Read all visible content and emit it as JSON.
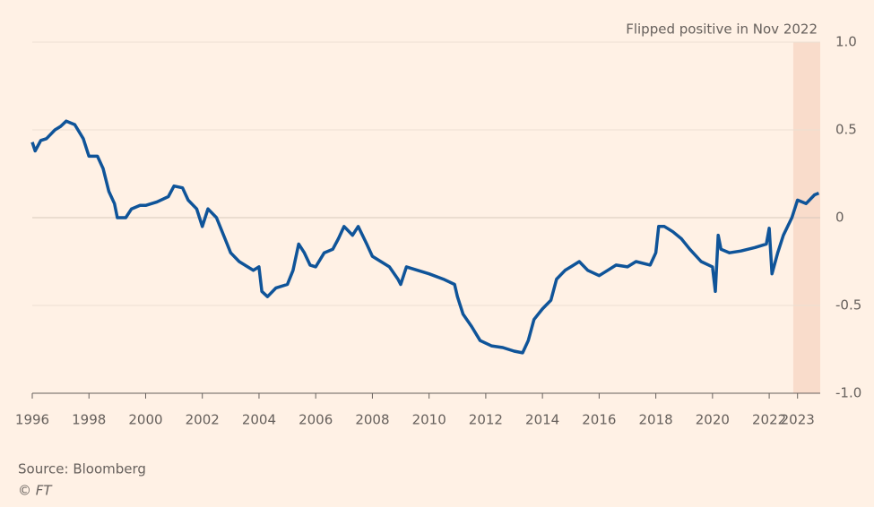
{
  "chart_data": {
    "type": "line",
    "annotation": "Flipped positive in Nov 2022",
    "source": "Source: Bloomberg",
    "credit": "© FT",
    "color": "#0f5499",
    "highlight_start": 2022.85,
    "highlight_color": "#f9dccb",
    "x": [
      1996.0,
      1996.1,
      1996.3,
      1996.5,
      1996.8,
      1997.0,
      1997.2,
      1997.5,
      1997.8,
      1998.0,
      1998.3,
      1998.5,
      1998.7,
      1998.9,
      1999.0,
      1999.3,
      1999.5,
      1999.8,
      2000.0,
      2000.4,
      2000.8,
      2001.0,
      2001.3,
      2001.5,
      2001.8,
      2002.0,
      2002.2,
      2002.5,
      2002.8,
      2003.0,
      2003.3,
      2003.6,
      2003.8,
      2004.0,
      2004.1,
      2004.3,
      2004.6,
      2005.0,
      2005.2,
      2005.4,
      2005.6,
      2005.8,
      2006.0,
      2006.3,
      2006.6,
      2006.8,
      2007.0,
      2007.3,
      2007.5,
      2007.8,
      2008.0,
      2008.3,
      2008.6,
      2008.9,
      2009.0,
      2009.2,
      2009.6,
      2010.0,
      2010.5,
      2010.9,
      2011.0,
      2011.2,
      2011.5,
      2011.8,
      2012.2,
      2012.6,
      2013.0,
      2013.3,
      2013.5,
      2013.7,
      2014.0,
      2014.3,
      2014.5,
      2014.8,
      2015.0,
      2015.3,
      2015.6,
      2016.0,
      2016.3,
      2016.6,
      2017.0,
      2017.3,
      2017.8,
      2018.0,
      2018.1,
      2018.3,
      2018.6,
      2018.9,
      2019.2,
      2019.6,
      2020.0,
      2020.1,
      2020.2,
      2020.3,
      2020.6,
      2021.0,
      2021.5,
      2021.9,
      2022.0,
      2022.1,
      2022.3,
      2022.5,
      2022.8,
      2023.0,
      2023.3,
      2023.6,
      2023.75
    ],
    "values": [
      0.43,
      0.38,
      0.44,
      0.45,
      0.5,
      0.52,
      0.55,
      0.53,
      0.45,
      0.35,
      0.35,
      0.28,
      0.15,
      0.08,
      0.0,
      0.0,
      0.05,
      0.07,
      0.07,
      0.09,
      0.12,
      0.18,
      0.17,
      0.1,
      0.05,
      -0.05,
      0.05,
      0.0,
      -0.12,
      -0.2,
      -0.25,
      -0.28,
      -0.3,
      -0.28,
      -0.42,
      -0.45,
      -0.4,
      -0.38,
      -0.3,
      -0.15,
      -0.2,
      -0.27,
      -0.28,
      -0.2,
      -0.18,
      -0.12,
      -0.05,
      -0.1,
      -0.05,
      -0.15,
      -0.22,
      -0.25,
      -0.28,
      -0.35,
      -0.38,
      -0.28,
      -0.3,
      -0.32,
      -0.35,
      -0.38,
      -0.45,
      -0.55,
      -0.62,
      -0.7,
      -0.73,
      -0.74,
      -0.76,
      -0.77,
      -0.7,
      -0.58,
      -0.52,
      -0.47,
      -0.35,
      -0.3,
      -0.28,
      -0.25,
      -0.3,
      -0.33,
      -0.3,
      -0.27,
      -0.28,
      -0.25,
      -0.27,
      -0.2,
      -0.05,
      -0.05,
      -0.08,
      -0.12,
      -0.18,
      -0.25,
      -0.28,
      -0.42,
      -0.1,
      -0.18,
      -0.2,
      -0.19,
      -0.17,
      -0.15,
      -0.06,
      -0.32,
      -0.2,
      -0.1,
      0.0,
      0.1,
      0.08,
      0.13,
      0.14
    ],
    "xlim": [
      1996,
      2023.8
    ],
    "xticks": [
      1996,
      1998,
      2000,
      2002,
      2004,
      2006,
      2008,
      2010,
      2012,
      2014,
      2016,
      2018,
      2020,
      2022,
      2023
    ],
    "ylim": [
      -1,
      1
    ],
    "yticks": [
      {
        "value": 1,
        "label": "1.0"
      },
      0.5,
      0,
      -0.5,
      {
        "value": -1,
        "label": "-1.0"
      }
    ],
    "grid": true
  }
}
